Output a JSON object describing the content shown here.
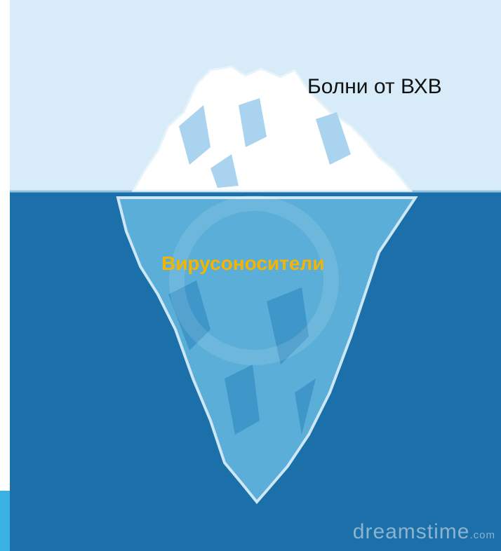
{
  "labels": {
    "top": "Болни от ВХВ",
    "underwater": "Вирусоносители"
  },
  "watermark": {
    "brand": "dreamstime",
    "suffix": ".com"
  }
}
